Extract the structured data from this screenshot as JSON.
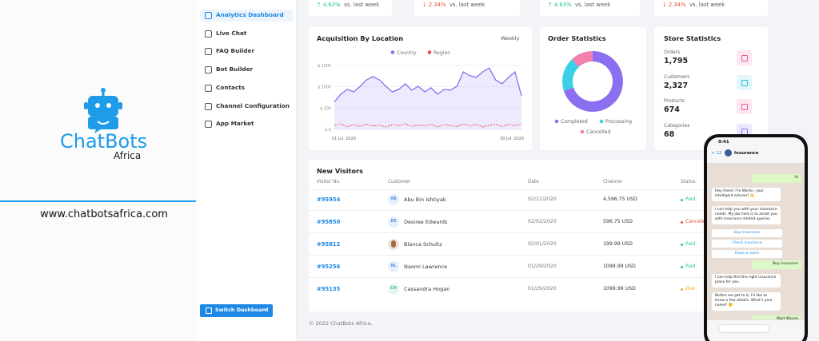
{
  "brand": {
    "name": "ChatBots",
    "sub": "Africa",
    "url": "www.chatbotsafrica.com"
  },
  "sidebar": {
    "items": [
      "Analytics Dashboard",
      "Live Chat",
      "FAQ Builder",
      "Bot Builder",
      "Contacts",
      "Channel Configuration",
      "App Market"
    ],
    "active": 0,
    "button": "Switch Dashboard"
  },
  "stats": [
    {
      "change": "↑ 4.63%",
      "note": "vs. last week",
      "color": "#1cc88a"
    },
    {
      "change": "↓ 2.34%",
      "note": "vs. last week",
      "color": "#e74a3b"
    },
    {
      "change": "↑ 4.63%",
      "note": "vs. last week",
      "color": "#1cc88a"
    },
    {
      "change": "↓ 2.34%",
      "note": "vs. last week",
      "color": "#e74a3b"
    }
  ],
  "chart_data": [
    {
      "type": "line",
      "title": "Acquisition By Location",
      "period": "Weekly",
      "categories": [
        "01 Jul. 2020",
        null,
        null,
        null,
        null,
        null,
        null,
        null,
        null,
        null,
        null,
        null,
        null,
        null,
        null,
        null,
        null,
        null,
        null,
        null,
        null,
        null,
        null,
        null,
        null,
        null,
        null,
        null,
        null,
        "30 Jul. 2020"
      ],
      "series": [
        {
          "name": "Country",
          "color": "#8b6ff0",
          "style": "area",
          "values": [
            640,
            825,
            940,
            880,
            1010,
            1160,
            1240,
            1160,
            1010,
            880,
            940,
            1070,
            920,
            1010,
            880,
            975,
            825,
            940,
            920,
            1010,
            1350,
            1260,
            1220,
            1350,
            1440,
            1160,
            1070,
            1220,
            1350,
            790
          ]
        },
        {
          "name": "Region",
          "color": "#e84b57",
          "style": "dashed",
          "values": [
            90,
            130,
            60,
            110,
            70,
            120,
            80,
            100,
            60,
            110,
            90,
            130,
            70,
            100,
            80,
            120,
            60,
            110,
            90,
            70,
            130,
            80,
            110,
            60,
            100,
            120,
            70,
            110,
            90,
            120
          ]
        }
      ],
      "ylim": [
        0,
        1700
      ],
      "yticks": [
        {
          "value": 0,
          "label": "$ 0"
        },
        {
          "value": 500,
          "label": "$ 500"
        },
        {
          "value": 1000,
          "label": "$ 1000"
        },
        {
          "value": 1500,
          "label": "$ 1500"
        }
      ],
      "grid": true
    },
    {
      "type": "pie",
      "title": "Order Statistics",
      "categories": [
        "Completed",
        "Processing",
        "Cancelled"
      ],
      "values": [
        70,
        18,
        12
      ],
      "colors": [
        "#8b6ff0",
        "#3ccfe8",
        "#f27fae"
      ],
      "donut": true
    }
  ],
  "store": {
    "title": "Store Statistics",
    "items": [
      {
        "label": "Orders",
        "value": "1,795"
      },
      {
        "label": "Customers",
        "value": "2,327"
      },
      {
        "label": "Products",
        "value": "674"
      },
      {
        "label": "Categories",
        "value": "68"
      }
    ]
  },
  "visitors": {
    "title": "New Visitors",
    "columns": [
      "Visitor No.",
      "Customer",
      "Date",
      "Channel",
      "Status"
    ],
    "rows": [
      {
        "id": "#95954",
        "initials": "AB",
        "name": "Abu Bin Ishtiyak",
        "date": "02/11/2020",
        "amount": "4,596.75 USD",
        "status": "Paid",
        "status_color": "#1cc88a"
      },
      {
        "id": "#95850",
        "initials": "DE",
        "name": "Desiree Edwards",
        "date": "02/02/2020",
        "amount": "596.75 USD",
        "status": "Canceled",
        "status_color": "#e74a3b"
      },
      {
        "id": "#95812",
        "name": "Blanca Schultz",
        "date": "02/01/2020",
        "amount": "199.99 USD",
        "status": "Paid",
        "status_color": "#1cc88a"
      },
      {
        "id": "#95256",
        "initials": "NL",
        "name": "Naomi Lawrence",
        "date": "01/29/2020",
        "amount": "1099.99 USD",
        "status": "Paid",
        "status_color": "#1cc88a"
      },
      {
        "id": "#95135",
        "initials": "CH",
        "name": "Cassandra Hogan",
        "date": "01/29/2020",
        "amount": "1099.99 USD",
        "status": "Due",
        "status_color": "#f6a623"
      }
    ]
  },
  "footer": "© 2022 ChatBots Africa.",
  "phone": {
    "time": "9:41",
    "back": "< 12",
    "contact": "Insurance",
    "messages": [
      {
        "from": "user",
        "text": "Hi"
      },
      {
        "from": "bot",
        "text": "Hey there! I'm Martin, your intelligent advisor! 👋"
      },
      {
        "from": "bot",
        "text": "I can help you with your insurance needs. My job here is to assist you with insurance related queries."
      },
      {
        "from": "option",
        "text": "Buy insurance"
      },
      {
        "from": "option",
        "text": "Check insurance"
      },
      {
        "from": "option",
        "text": "Raise a claim"
      },
      {
        "from": "user",
        "text": "Buy insurance"
      },
      {
        "from": "bot",
        "text": "I can help find the right insurance plans for you."
      },
      {
        "from": "bot",
        "text": "Before we get to it, I'd like to know a few details. What's your name? 🤔"
      },
      {
        "from": "user",
        "text": "Mart Wayne"
      }
    ]
  }
}
